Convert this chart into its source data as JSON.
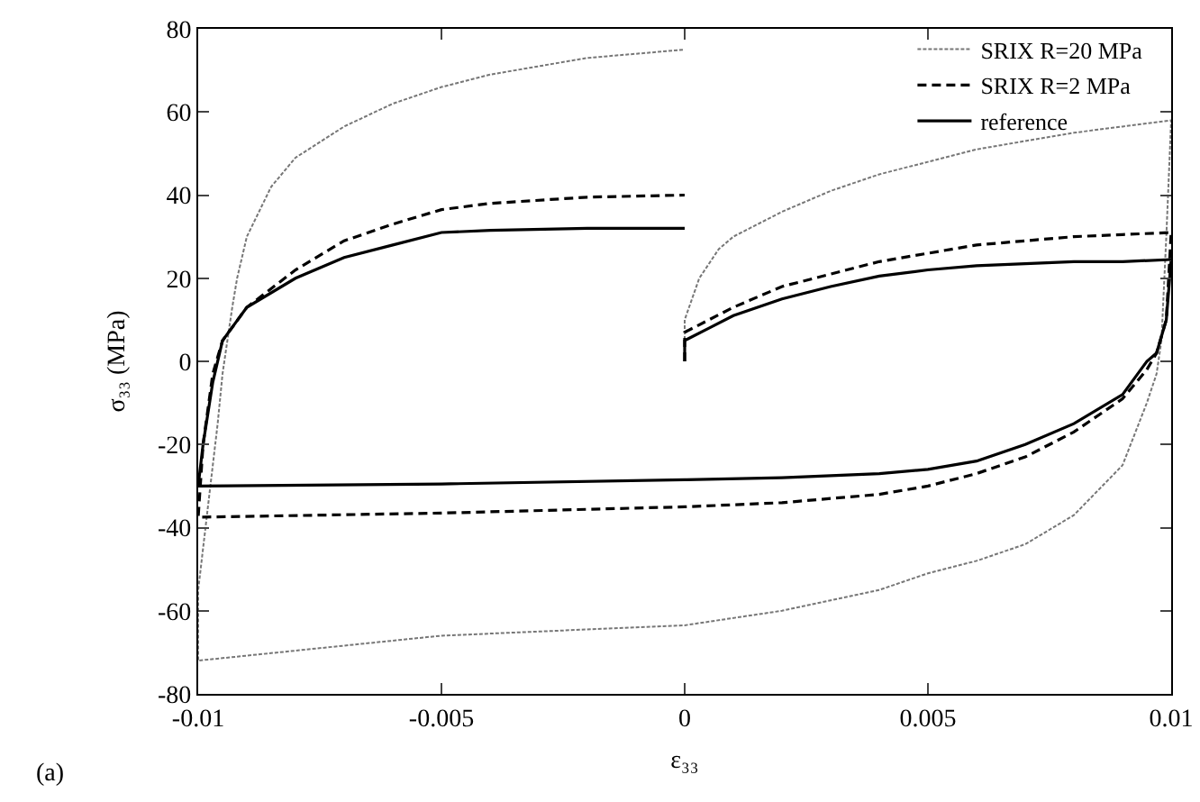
{
  "chart_data": {
    "type": "line",
    "xlabel": "ε₃₃",
    "ylabel": "σ₃₃ (MPa)",
    "xlim": [
      -0.01,
      0.01
    ],
    "xticks": [
      -0.01,
      -0.005,
      0,
      0.005,
      0.01
    ],
    "ylim": [
      -80,
      80
    ],
    "yticks": [
      -80,
      -60,
      -40,
      -20,
      0,
      20,
      40,
      60,
      80
    ],
    "grid": false,
    "legend": "top right",
    "annotations": [
      "(a)"
    ],
    "series": [
      {
        "name": "SRIX R=20 MPa",
        "color": "#777777",
        "line_style": "dotted",
        "x": [
          0,
          0,
          0.0003,
          0.0007,
          0.001,
          0.002,
          0.003,
          0.004,
          0.005,
          0.006,
          0.007,
          0.008,
          0.009,
          0.01,
          0.0099,
          0.0098,
          0.0097,
          0.0095,
          0.009,
          0.008,
          0.007,
          0.006,
          0.005,
          0.004,
          0.003,
          0.002,
          0,
          -0.005,
          -0.01,
          -0.01,
          -0.0098,
          -0.0096,
          -0.0095,
          -0.0094,
          -0.0093,
          -0.0092,
          -0.009,
          -0.0085,
          -0.008,
          -0.007,
          -0.006,
          -0.005,
          -0.004,
          -0.003,
          -0.002,
          -0.001,
          0
        ],
        "values": [
          0,
          10,
          20,
          27,
          30,
          36,
          41,
          45,
          48,
          51,
          53,
          55,
          56.5,
          58,
          30,
          5,
          -3,
          -10,
          -25,
          -37,
          -44,
          -48,
          -51,
          -55,
          -57.5,
          -60,
          -63.5,
          -66,
          -72,
          -55,
          -35,
          -15,
          -3,
          5,
          13,
          20,
          30,
          42,
          49,
          56.5,
          62,
          66,
          69,
          71,
          73,
          74,
          75
        ]
      },
      {
        "name": "SRIX R=2 MPa",
        "color": "#000000",
        "line_style": "dashed",
        "x": [
          0,
          0,
          0.0005,
          0.001,
          0.002,
          0.003,
          0.004,
          0.005,
          0.006,
          0.007,
          0.008,
          0.009,
          0.01,
          0.0099,
          0.0097,
          0.0095,
          0.009,
          0.008,
          0.007,
          0.006,
          0.005,
          0.004,
          0.002,
          0,
          -0.005,
          -0.01,
          -0.0099,
          -0.0097,
          -0.0095,
          -0.009,
          -0.008,
          -0.007,
          -0.006,
          -0.005,
          -0.004,
          -0.002,
          0
        ],
        "values": [
          0,
          7,
          10,
          13,
          18,
          21,
          24,
          26,
          28,
          29,
          30,
          30.5,
          31,
          10,
          2,
          -2,
          -9,
          -17,
          -23,
          -27,
          -30,
          -32,
          -34,
          -35,
          -36.5,
          -37.5,
          -20,
          -3,
          5,
          13,
          22,
          29,
          33,
          36.5,
          38,
          39.5,
          40
        ]
      },
      {
        "name": "reference",
        "color": "#000000",
        "line_style": "solid",
        "x": [
          0,
          0,
          0.0005,
          0.001,
          0.002,
          0.003,
          0.004,
          0.005,
          0.006,
          0.007,
          0.008,
          0.009,
          0.01,
          0.0099,
          0.0097,
          0.0095,
          0.009,
          0.008,
          0.007,
          0.006,
          0.005,
          0.004,
          0.002,
          0,
          -0.005,
          -0.01,
          -0.0099,
          -0.0097,
          -0.0095,
          -0.009,
          -0.008,
          -0.007,
          -0.006,
          -0.005,
          -0.004,
          -0.002,
          0
        ],
        "values": [
          0,
          5,
          8,
          11,
          15,
          18,
          20.5,
          22,
          23,
          23.5,
          24,
          24,
          24.5,
          10,
          2,
          0,
          -8,
          -15,
          -20,
          -24,
          -26,
          -27,
          -28,
          -28.5,
          -29.5,
          -30,
          -20,
          -5,
          5,
          13,
          20,
          25,
          28,
          31,
          31.5,
          32,
          32
        ]
      }
    ]
  }
}
